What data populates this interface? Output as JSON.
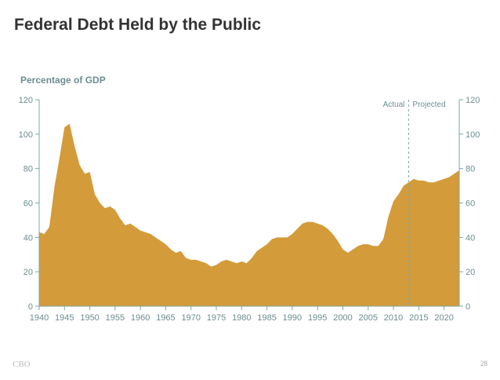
{
  "slide": {
    "title": "Federal Debt Held by the Public",
    "footer_left": "CBO",
    "page_number": "28"
  },
  "colors": {
    "area": "#d49b3a",
    "axis": "#7fa6a8",
    "text": "#6d8d91",
    "title": "#333333"
  },
  "chart_data": {
    "type": "area",
    "title": "",
    "ylabel": "Percentage of GDP",
    "xlabel": "",
    "xlim": [
      1940,
      2023
    ],
    "ylim": [
      0,
      120
    ],
    "x_ticks": [
      1940,
      1945,
      1950,
      1955,
      1960,
      1965,
      1970,
      1975,
      1980,
      1985,
      1990,
      1995,
      2000,
      2005,
      2010,
      2015,
      2020
    ],
    "y_ticks": [
      0,
      20,
      40,
      60,
      80,
      100,
      120
    ],
    "grid": false,
    "divider": {
      "x": 2013,
      "left_label": "Actual",
      "right_label": "Projected"
    },
    "series": [
      {
        "x": [
          1940,
          1941,
          1942,
          1943,
          1944,
          1945,
          1946,
          1947,
          1948,
          1949,
          1950,
          1951,
          1952,
          1953,
          1954,
          1955,
          1956,
          1957,
          1958,
          1959,
          1960,
          1961,
          1962,
          1963,
          1964,
          1965,
          1966,
          1967,
          1968,
          1969,
          1970,
          1971,
          1972,
          1973,
          1974,
          1975,
          1976,
          1977,
          1978,
          1979,
          1980,
          1981,
          1982,
          1983,
          1984,
          1985,
          1986,
          1987,
          1988,
          1989,
          1990,
          1991,
          1992,
          1993,
          1994,
          1995,
          1996,
          1997,
          1998,
          1999,
          2000,
          2001,
          2002,
          2003,
          2004,
          2005,
          2006,
          2007,
          2008,
          2009,
          2010,
          2011,
          2012,
          2013,
          2014,
          2015,
          2016,
          2017,
          2018,
          2019,
          2020,
          2021,
          2022,
          2023
        ],
        "values": [
          43,
          42,
          46,
          69,
          86,
          104,
          106,
          93,
          82,
          77,
          78,
          65,
          60,
          57,
          58,
          56,
          51,
          47,
          48,
          46,
          44,
          43,
          42,
          40,
          38,
          36,
          33,
          31,
          32,
          28,
          27,
          27,
          26,
          25,
          23,
          24,
          26,
          27,
          26,
          25,
          26,
          25,
          28,
          32,
          34,
          36,
          39,
          40,
          40,
          40,
          42,
          45,
          48,
          49,
          49,
          48,
          47,
          45,
          42,
          38,
          33,
          31,
          33,
          35,
          36,
          36,
          35,
          35,
          39,
          52,
          61,
          65,
          70,
          72,
          74,
          73,
          73,
          72,
          72,
          73,
          74,
          75,
          77,
          79
        ]
      }
    ]
  }
}
